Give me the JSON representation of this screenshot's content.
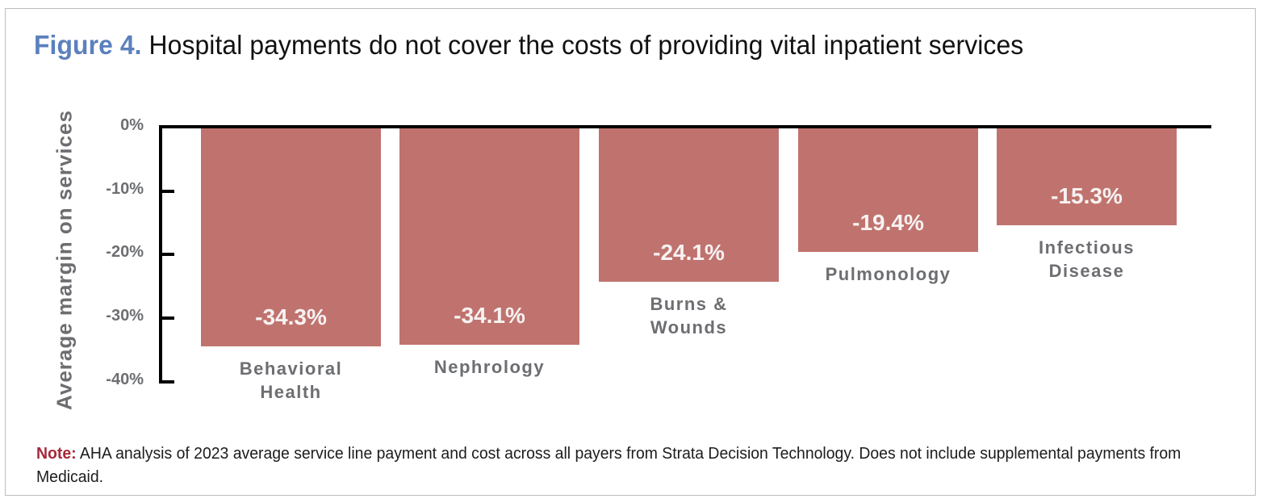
{
  "title": {
    "figure_label": "Figure 4.",
    "text": "Hospital payments do not cover the costs of providing vital inpatient services"
  },
  "note": {
    "label": "Note:",
    "text": "AHA analysis of 2023 average service line payment and cost across all payers from Strata Decision Technology. Does not include supplemental payments from Medicaid."
  },
  "colors": {
    "bar": "#c0736e",
    "figure_label": "#5b80bd",
    "note_label": "#a6283a",
    "axis_text": "#6d6e71"
  },
  "chart_data": {
    "type": "bar",
    "title": "Figure 4. Hospital payments do not cover the costs of providing vital inpatient services",
    "xlabel": "",
    "ylabel": "Average margin on services",
    "ylim": [
      -40,
      0
    ],
    "yticks": [
      "0%",
      "-10%",
      "-20%",
      "-30%",
      "-40%"
    ],
    "ytick_values": [
      0,
      -10,
      -20,
      -30,
      -40
    ],
    "grid": false,
    "legend": null,
    "categories": [
      "Behavioral Health",
      "Nephrology",
      "Burns & Wounds",
      "Pulmonology",
      "Infectious Disease"
    ],
    "category_lines": [
      [
        "Behavioral",
        "Health"
      ],
      [
        "Nephrology"
      ],
      [
        "Burns &",
        "Wounds"
      ],
      [
        "Pulmonology"
      ],
      [
        "Infectious",
        "Disease"
      ]
    ],
    "values": [
      -34.3,
      -34.1,
      -24.1,
      -19.4,
      -15.3
    ],
    "value_labels": [
      "-34.3%",
      "-34.1%",
      "-24.1%",
      "-19.4%",
      "-15.3%"
    ]
  }
}
